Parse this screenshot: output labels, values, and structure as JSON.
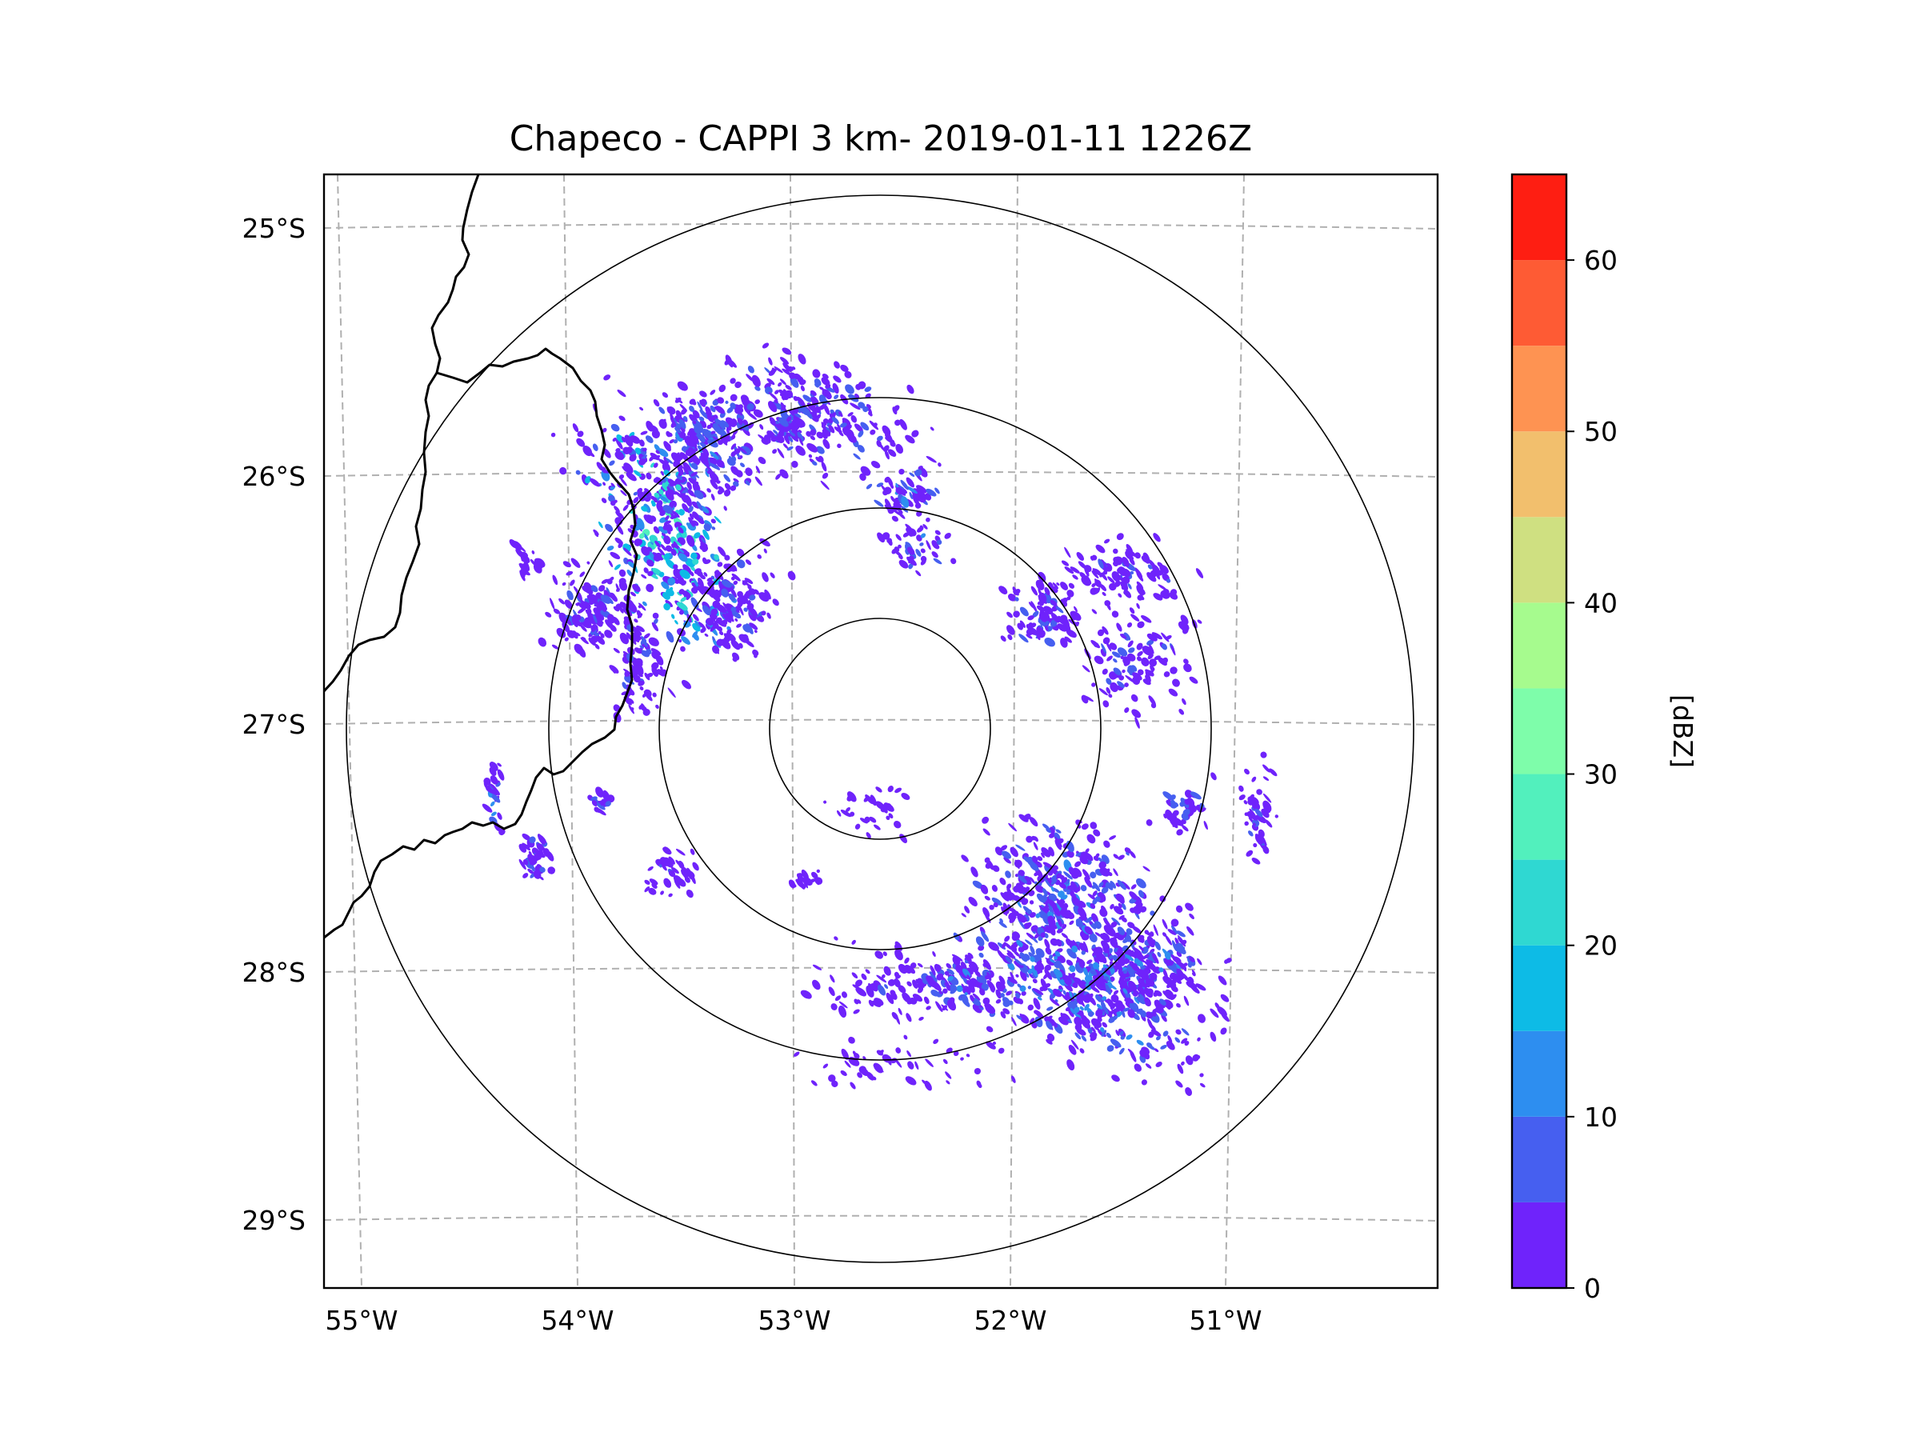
{
  "title": "Chapeco - CAPPI 3 km- 2019-01-11 1226Z",
  "map": {
    "lon_ticks": [
      "55°W",
      "54°W",
      "53°W",
      "52°W",
      "51°W"
    ],
    "lat_ticks": [
      "25°S",
      "26°S",
      "27°S",
      "28°S",
      "29°S"
    ],
    "radar_site": {
      "lon": -52.6,
      "lat": -27.03
    },
    "range_rings_km": [
      50,
      100,
      150,
      250
    ],
    "colors": {
      "boundary": "#000000",
      "grid": "#b0b0b0",
      "rings": "#000000"
    }
  },
  "echoes": [
    {
      "region": "northwest squall line",
      "dbz_min": 5,
      "dbz_max": 30
    },
    {
      "region": "north cluster",
      "dbz_min": 0,
      "dbz_max": 15
    },
    {
      "region": "southeast stratiform area",
      "dbz_min": 0,
      "dbz_max": 20
    },
    {
      "region": "scattered cells",
      "dbz_min": 0,
      "dbz_max": 10
    }
  ],
  "colorbar": {
    "label": "[dBZ]",
    "min": 0,
    "max": 65,
    "ticks": [
      "0",
      "10",
      "20",
      "30",
      "40",
      "50",
      "60"
    ],
    "tick_values": [
      0,
      10,
      20,
      30,
      40,
      50,
      60
    ],
    "bins": [
      {
        "from": 0,
        "to": 5,
        "color": "#6f23fb"
      },
      {
        "from": 5,
        "to": 10,
        "color": "#465ff0"
      },
      {
        "from": 10,
        "to": 15,
        "color": "#2d8ef0"
      },
      {
        "from": 15,
        "to": 20,
        "color": "#0dbbe6"
      },
      {
        "from": 20,
        "to": 25,
        "color": "#2fd8d2"
      },
      {
        "from": 25,
        "to": 30,
        "color": "#52f0bd"
      },
      {
        "from": 30,
        "to": 35,
        "color": "#7efdaa"
      },
      {
        "from": 35,
        "to": 40,
        "color": "#a6fb8e"
      },
      {
        "from": 40,
        "to": 45,
        "color": "#cfe081"
      },
      {
        "from": 45,
        "to": 50,
        "color": "#f2bf6d"
      },
      {
        "from": 50,
        "to": 55,
        "color": "#fe9352"
      },
      {
        "from": 55,
        "to": 60,
        "color": "#fe5b34"
      },
      {
        "from": 60,
        "to": 65,
        "color": "#fe1e12"
      }
    ]
  }
}
